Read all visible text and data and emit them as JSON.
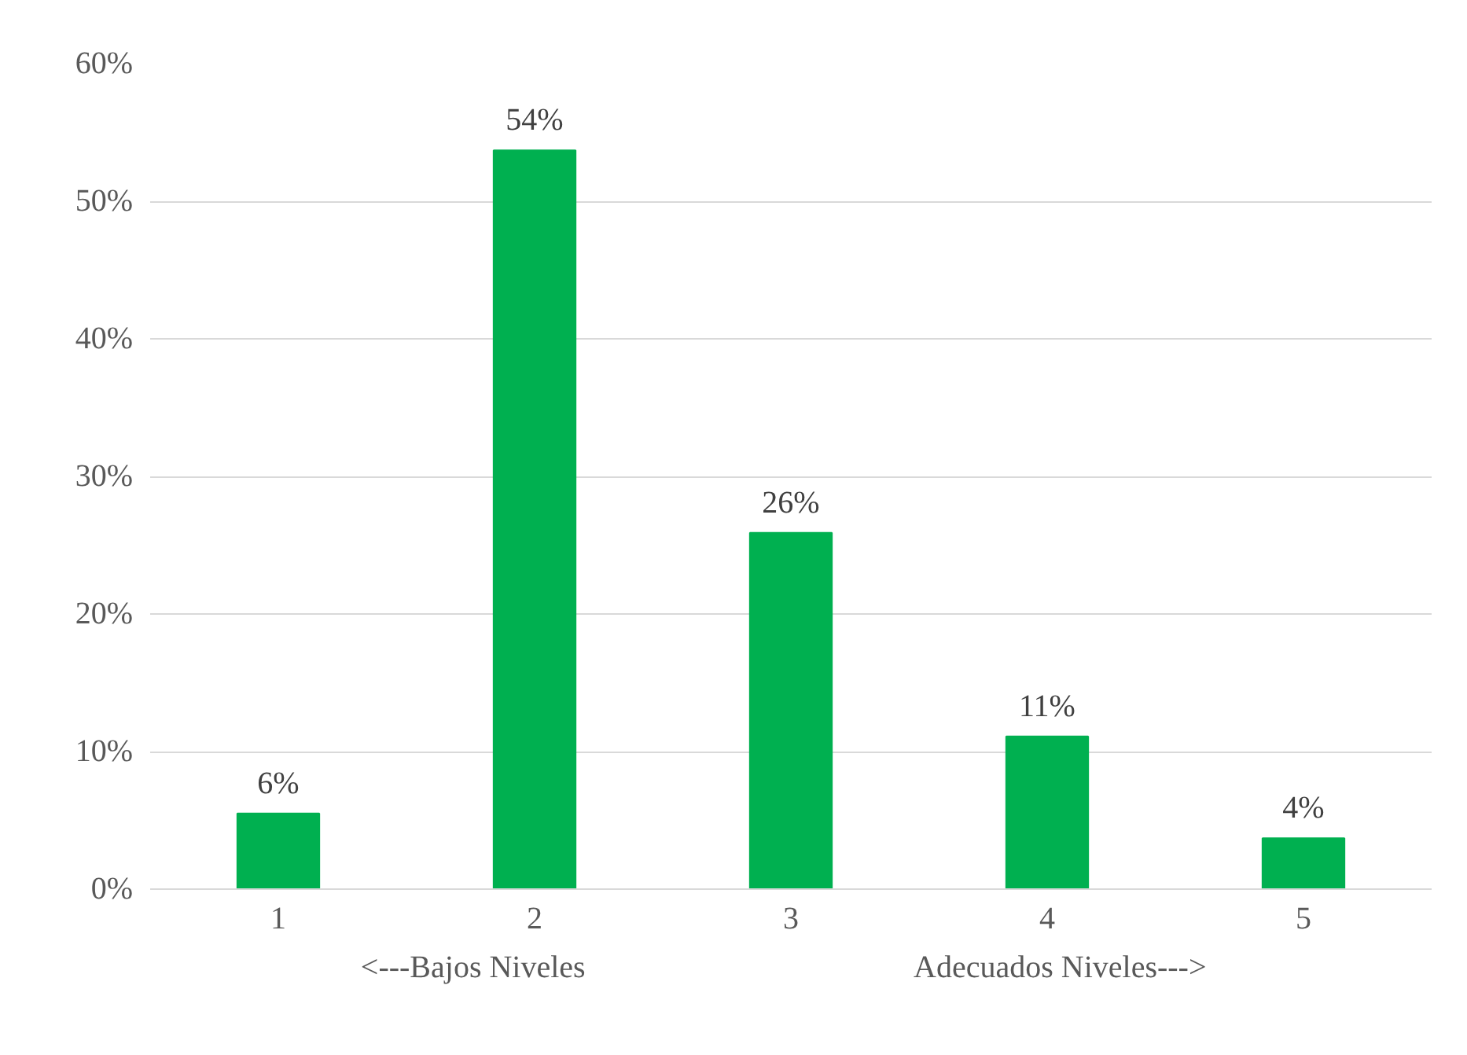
{
  "chart_data": {
    "type": "bar",
    "categories": [
      "1",
      "2",
      "3",
      "4",
      "5"
    ],
    "values": [
      5.5,
      53.7,
      25.9,
      11.1,
      3.7
    ],
    "value_labels": [
      "6%",
      "54%",
      "26%",
      "11%",
      "4%"
    ],
    "color": "#00b050",
    "ylim": [
      0,
      60
    ],
    "yticks": [
      {
        "value": 0,
        "label": "0%"
      },
      {
        "value": 10,
        "label": "10%"
      },
      {
        "value": 20,
        "label": "20%"
      },
      {
        "value": 30,
        "label": "30%"
      },
      {
        "value": 40,
        "label": "40%"
      },
      {
        "value": 50,
        "label": "50%"
      },
      {
        "value": 60,
        "label": "60%"
      }
    ],
    "grid": "y",
    "annotations": [
      "<---Bajos Niveles",
      "Adecuados Niveles--->"
    ]
  }
}
